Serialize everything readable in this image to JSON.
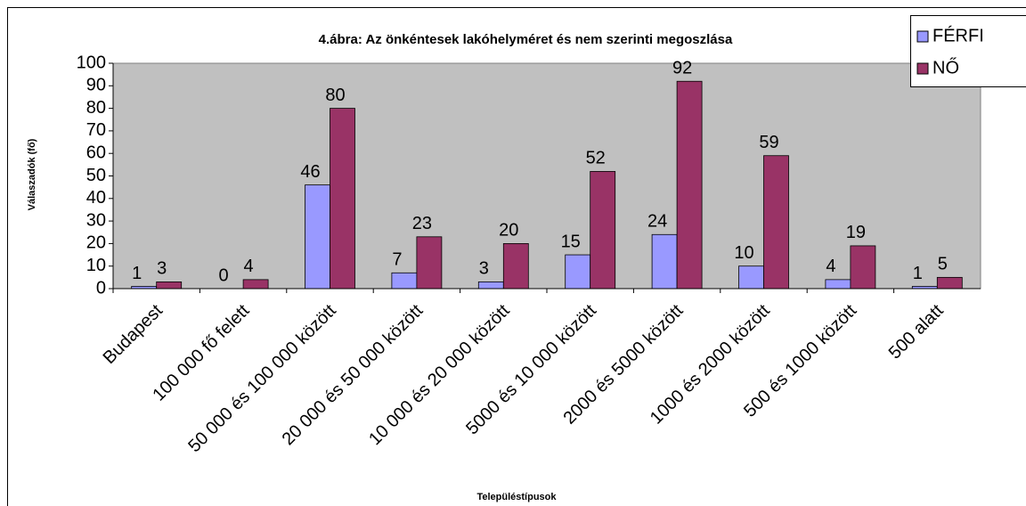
{
  "chart_data": {
    "type": "bar",
    "title": "4.ábra: Az önkéntesek lakóhelyméret és nem szerinti megoszlása",
    "y_label": "Válaszadók (fő)",
    "x_label": "Településtípusok",
    "categories": [
      "Budapest",
      "100 000 fő felett",
      "50 000 és 100 000 között",
      "20 000 és 50 000 között",
      "10 000 és 20 000 között",
      "5000 és 10 000 között",
      "2000 és 5000 között",
      "1000 és 2000 között",
      "500 és 1000 között",
      "500 alatt"
    ],
    "series": [
      {
        "name": "FÉRFI",
        "color": "#9999ff",
        "values": [
          1,
          0,
          46,
          7,
          3,
          15,
          24,
          10,
          4,
          1
        ]
      },
      {
        "name": "NŐ",
        "color": "#993366",
        "values": [
          3,
          4,
          80,
          23,
          20,
          52,
          92,
          59,
          19,
          5
        ]
      }
    ],
    "ylim": [
      0,
      100
    ],
    "yticks": [
      0,
      10,
      20,
      30,
      40,
      50,
      60,
      70,
      80,
      90,
      100
    ],
    "legend": "top-right"
  }
}
